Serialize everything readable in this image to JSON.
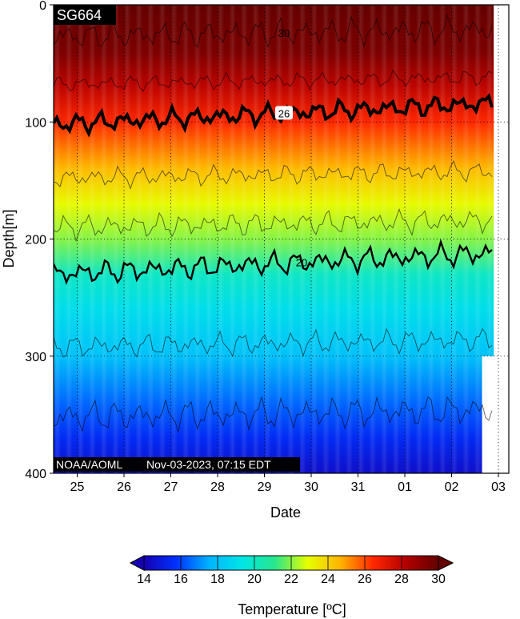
{
  "chart_data": {
    "type": "heatmap",
    "title_tag": "SG664",
    "credit": "NOAA/AOML",
    "timestamp": "Nov-03-2023, 07:15 EDT",
    "xlabel": "Date",
    "ylabel": "Depth[m]",
    "y_axis": {
      "min": 0,
      "max": 400,
      "inverted": true,
      "ticks": [
        "0",
        "100",
        "200",
        "300",
        "400"
      ]
    },
    "x_axis": {
      "ticks": [
        "25",
        "26",
        "27",
        "28",
        "29",
        "30",
        "31",
        "01",
        "02",
        "03"
      ]
    },
    "grid": true,
    "colorbar": {
      "label": "Temperature [ºC]",
      "min": 14,
      "max": 30,
      "ticks": [
        "14",
        "16",
        "18",
        "20",
        "22",
        "24",
        "26",
        "28",
        "30"
      ],
      "colors": [
        "#1600b4",
        "#0033ff",
        "#00b4ff",
        "#00e6e6",
        "#28e68c",
        "#e6ff00",
        "#ffb400",
        "#ff2800",
        "#b40000",
        "#640000"
      ]
    },
    "data_coverage": [
      {
        "from_day": 0,
        "to_day": 8.9,
        "max_depth": 300
      },
      {
        "from_day": 8.9,
        "to_day": 8.65,
        "max_depth": 400
      }
    ],
    "temperature_profile": [
      {
        "depth": 0,
        "temp": 30.5
      },
      {
        "depth": 40,
        "temp": 29.5
      },
      {
        "depth": 70,
        "temp": 28.0
      },
      {
        "depth": 100,
        "temp": 26.5
      },
      {
        "depth": 140,
        "temp": 24.5
      },
      {
        "depth": 170,
        "temp": 23.0
      },
      {
        "depth": 200,
        "temp": 22.0
      },
      {
        "depth": 230,
        "temp": 20.0
      },
      {
        "depth": 260,
        "temp": 19.0
      },
      {
        "depth": 300,
        "temp": 18.0
      },
      {
        "depth": 340,
        "temp": 16.5
      },
      {
        "depth": 370,
        "temp": 15.5
      },
      {
        "depth": 400,
        "temp": 14.5
      }
    ],
    "isotherms": [
      {
        "temp": 30,
        "label": "30",
        "bold": false,
        "mean_depth": 27,
        "amp": 7
      },
      {
        "temp": 28,
        "label": "",
        "bold": false,
        "mean_depth": 68,
        "amp": 4
      },
      {
        "temp": 26,
        "label": "26",
        "bold": true,
        "mean_depth": 102,
        "amp": 5
      },
      {
        "temp": 24,
        "label": "",
        "bold": false,
        "mean_depth": 148,
        "amp": 5
      },
      {
        "temp": 22,
        "label": "",
        "bold": false,
        "mean_depth": 190,
        "amp": 6
      },
      {
        "temp": 20,
        "label": "20",
        "bold": true,
        "mean_depth": 230,
        "amp": 6
      },
      {
        "temp": 18,
        "label": "",
        "bold": false,
        "mean_depth": 292,
        "amp": 6
      },
      {
        "temp": 16,
        "label": "",
        "bold": false,
        "mean_depth": 352,
        "amp": 8
      }
    ]
  }
}
